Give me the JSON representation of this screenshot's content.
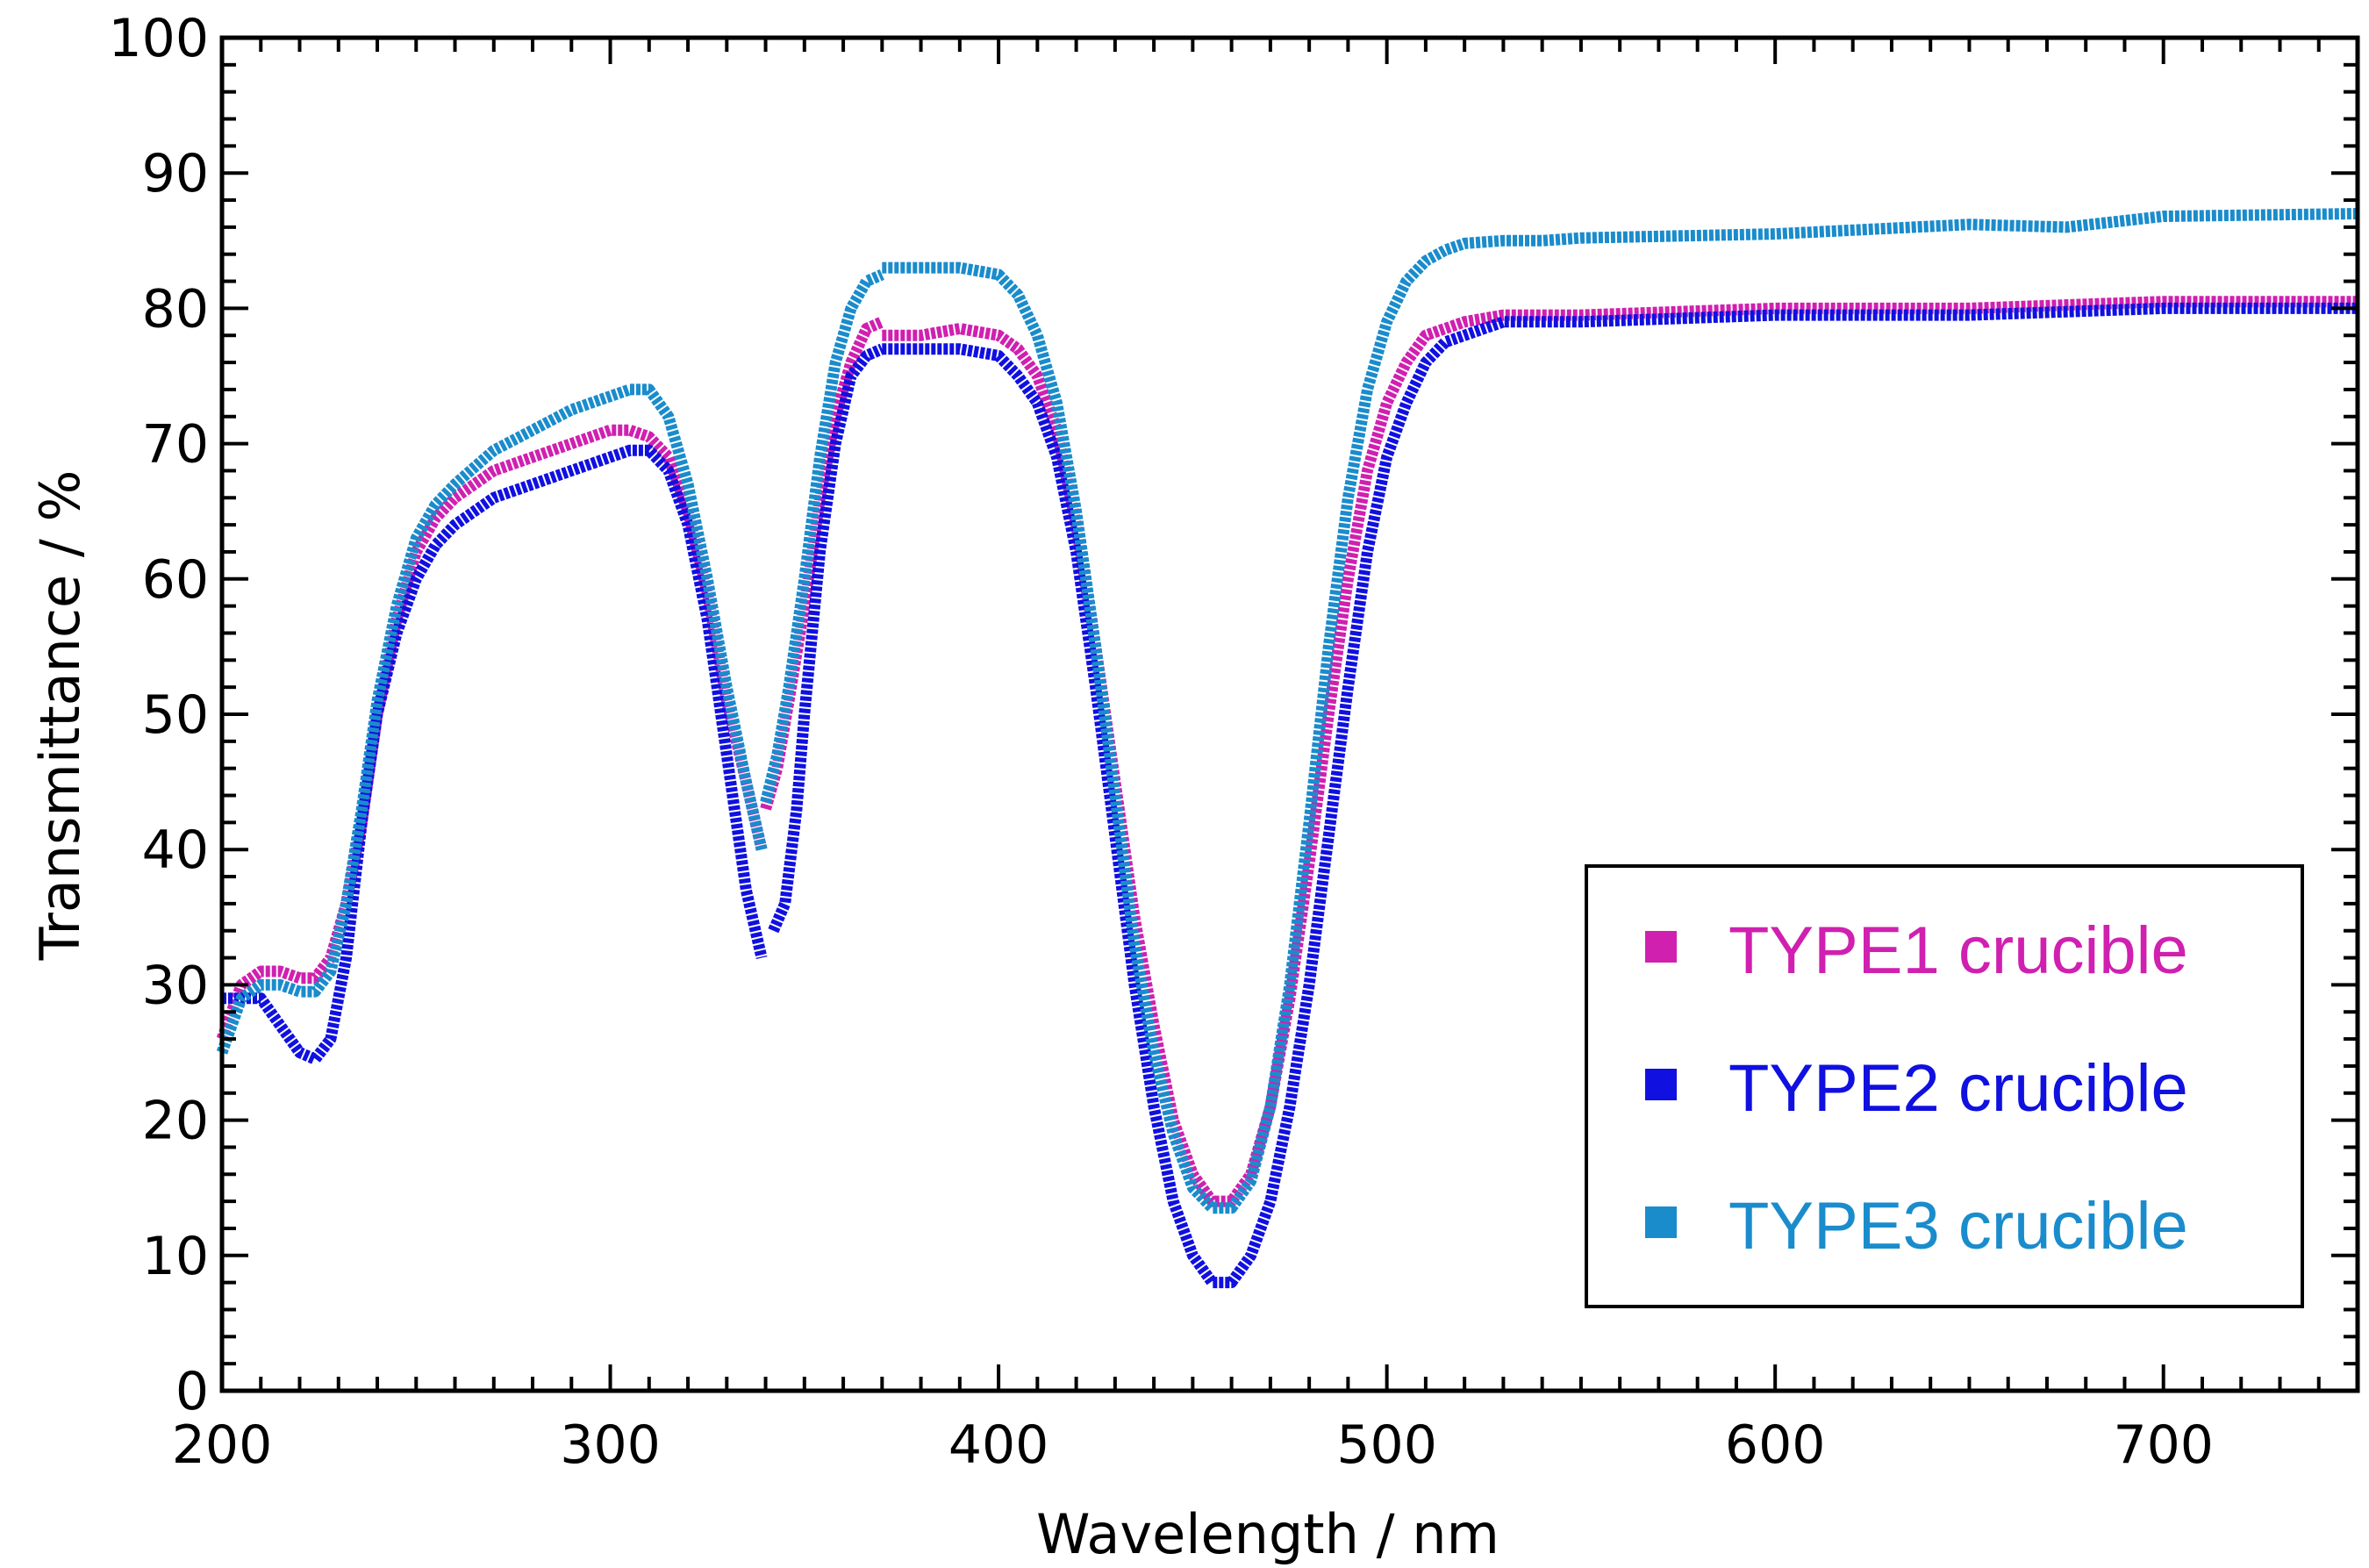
{
  "chart_data": {
    "type": "line",
    "title": "",
    "xlabel": "Wavelength / nm",
    "ylabel": "Transmittance / %",
    "xlim": [
      200,
      750
    ],
    "ylim": [
      0,
      100
    ],
    "xticks": [
      200,
      300,
      400,
      500,
      600,
      700
    ],
    "yticks": [
      0,
      10,
      20,
      30,
      40,
      50,
      60,
      70,
      80,
      90,
      100
    ],
    "grid": false,
    "legend_position": "bottom-right",
    "series": [
      {
        "name": "TYPE1 crucible",
        "color": "#d020b0",
        "segments": [
          {
            "x": [
              200,
              205,
              210,
              215,
              220,
              224,
              228,
              232,
              236,
              240,
              245,
              250,
              255,
              260,
              270,
              280,
              290,
              300,
              305,
              310,
              315,
              320,
              325,
              330,
              335,
              339
            ],
            "y": [
              26,
              30,
              31,
              31,
              30.5,
              30.5,
              32,
              36,
              42,
              50,
              57,
              62,
              64.5,
              66,
              68,
              69,
              70,
              71,
              71,
              70.5,
              69,
              65,
              59,
              51,
              45,
              40
            ]
          },
          {
            "x": [
              340,
              343,
              346,
              350,
              354,
              358,
              362,
              366,
              370
            ],
            "y": [
              43,
              46,
              51,
              58,
              66,
              72,
              76,
              78.5,
              79
            ]
          },
          {
            "x": [
              370,
              380,
              390,
              400,
              405,
              410,
              415,
              420,
              425,
              430,
              435,
              440,
              445,
              450,
              455,
              460,
              465,
              470,
              475,
              480,
              485,
              490,
              495,
              500,
              505,
              510,
              515,
              520,
              530,
              540,
              550,
              600,
              650,
              700,
              750
            ],
            "y": [
              78,
              78,
              78.5,
              78,
              77,
              75,
              71,
              64,
              55,
              45,
              35,
              27,
              20,
              16,
              14,
              14,
              16,
              21,
              29,
              39,
              50,
              60,
              68,
              73,
              76,
              78,
              78.5,
              79,
              79.5,
              79.5,
              79.5,
              80,
              80,
              80.5,
              80.5
            ]
          }
        ]
      },
      {
        "name": "TYPE2 crucible",
        "color": "#1010e0",
        "segments": [
          {
            "x": [
              200,
              205,
              210,
              215,
              220,
              224,
              228,
              232,
              236,
              240,
              245,
              250,
              255,
              260,
              270,
              280,
              290,
              300,
              305,
              310,
              315,
              320,
              325,
              330,
              335,
              339
            ],
            "y": [
              29,
              29,
              29,
              27,
              25,
              24.5,
              26,
              32,
              42,
              50,
              56,
              60,
              62.5,
              64,
              66,
              67,
              68,
              69,
              69.5,
              69.5,
              68,
              64,
              57,
              47,
              37,
              32
            ]
          },
          {
            "x": [
              342,
              345,
              348,
              350,
              354,
              358,
              362,
              366,
              370
            ],
            "y": [
              34,
              36,
              43,
              50,
              62,
              70,
              75,
              76.5,
              77
            ]
          },
          {
            "x": [
              370,
              380,
              390,
              400,
              405,
              410,
              415,
              420,
              425,
              430,
              435,
              440,
              445,
              450,
              455,
              460,
              465,
              470,
              475,
              480,
              485,
              490,
              495,
              500,
              505,
              510,
              515,
              520,
              530,
              540,
              550,
              600,
              650,
              700,
              750
            ],
            "y": [
              77,
              77,
              77,
              76.5,
              75,
              73,
              69,
              62,
              52,
              41,
              30,
              21,
              14,
              10,
              8,
              8,
              10,
              14,
              21,
              30,
              41,
              52,
              62,
              69,
              73,
              76,
              77.5,
              78,
              79,
              79,
              79,
              79.5,
              79.5,
              80,
              80
            ]
          }
        ]
      },
      {
        "name": "TYPE3 crucible",
        "color": "#1a8ccc",
        "segments": [
          {
            "x": [
              200,
              205,
              210,
              215,
              220,
              224,
              228,
              232,
              236,
              240,
              245,
              250,
              255,
              260,
              270,
              280,
              290,
              300,
              305,
              310,
              315,
              320,
              325,
              330,
              335,
              339
            ],
            "y": [
              25,
              29,
              30,
              30,
              29.5,
              29.5,
              31,
              36,
              43,
              51,
              58,
              63,
              65.5,
              67,
              69.5,
              71,
              72.5,
              73.5,
              74,
              74,
              72,
              67,
              60,
              52,
              45,
              40
            ]
          },
          {
            "x": [
              340,
              343,
              346,
              350,
              354,
              358,
              362,
              366,
              370
            ],
            "y": [
              43.5,
              47,
              52,
              60,
              69,
              76,
              80,
              82,
              82.5
            ]
          },
          {
            "x": [
              370,
              380,
              390,
              400,
              405,
              410,
              415,
              420,
              425,
              430,
              435,
              440,
              445,
              450,
              455,
              460,
              465,
              470,
              475,
              480,
              485,
              490,
              495,
              500,
              505,
              510,
              515,
              520,
              530,
              540,
              550,
              600,
              650,
              675,
              700,
              750
            ],
            "y": [
              83,
              83,
              83,
              82.5,
              81,
              78,
              73,
              65,
              55,
              44,
              33,
              25,
              19,
              15,
              13.5,
              13.5,
              15.5,
              21,
              30,
              42,
              55,
              66,
              74,
              79,
              82,
              83.5,
              84.3,
              84.8,
              85,
              85,
              85.2,
              85.5,
              86.2,
              86,
              86.8,
              87
            ]
          }
        ]
      }
    ]
  }
}
